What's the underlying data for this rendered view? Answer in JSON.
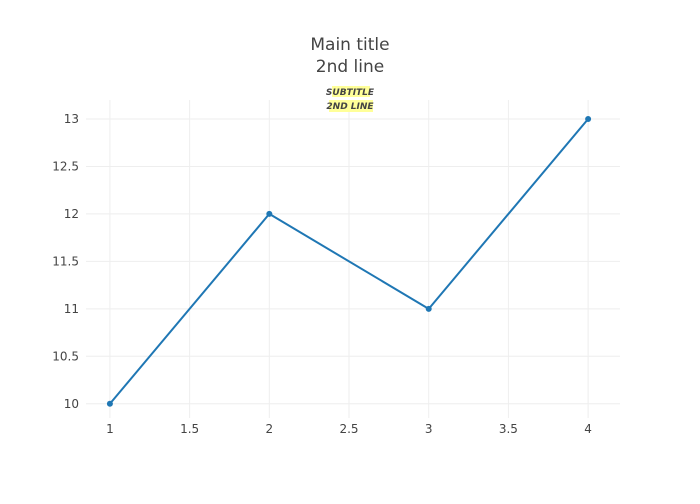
{
  "chart_data": {
    "type": "line",
    "title": [
      "Main title",
      "2nd line"
    ],
    "subtitle": [
      "SUBTITLE",
      "2ND LINE"
    ],
    "x": [
      1,
      2,
      3,
      4
    ],
    "series": [
      {
        "values": [
          10,
          12,
          11,
          13
        ],
        "color": "#1f77b4"
      }
    ],
    "x_ticks": [
      1,
      1.5,
      2,
      2.5,
      3,
      3.5,
      4
    ],
    "y_ticks": [
      10,
      10.5,
      11,
      11.5,
      12,
      12.5,
      13
    ],
    "xlim": [
      0.85,
      4.2
    ],
    "ylim": [
      9.85,
      13.2
    ],
    "grid": true,
    "subtitle_highlight": "#ffff99"
  }
}
